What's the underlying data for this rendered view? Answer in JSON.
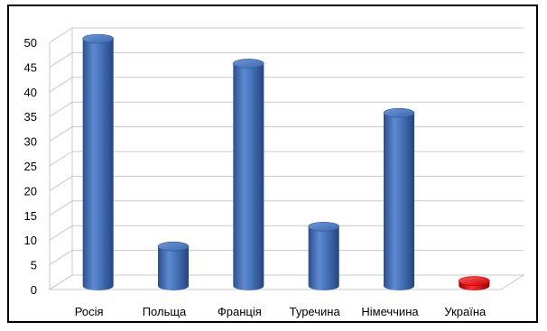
{
  "chart_data": {
    "type": "bar",
    "style": "3d-cylinder",
    "categories": [
      "Росія",
      "Польща",
      "Франція",
      "Туречина",
      "Німеччина",
      "Україна"
    ],
    "values": [
      50,
      8,
      45,
      12,
      35,
      1
    ],
    "ylim": [
      0,
      50
    ],
    "yticks": [
      0,
      5,
      10,
      15,
      20,
      25,
      30,
      35,
      40,
      45,
      50
    ],
    "grid": true,
    "legend": "none",
    "colors": {
      "bar": "#3a67b0",
      "highlight_bar": "#e01010",
      "grid": "#c8c8c8"
    },
    "highlight_category": "Україна"
  }
}
